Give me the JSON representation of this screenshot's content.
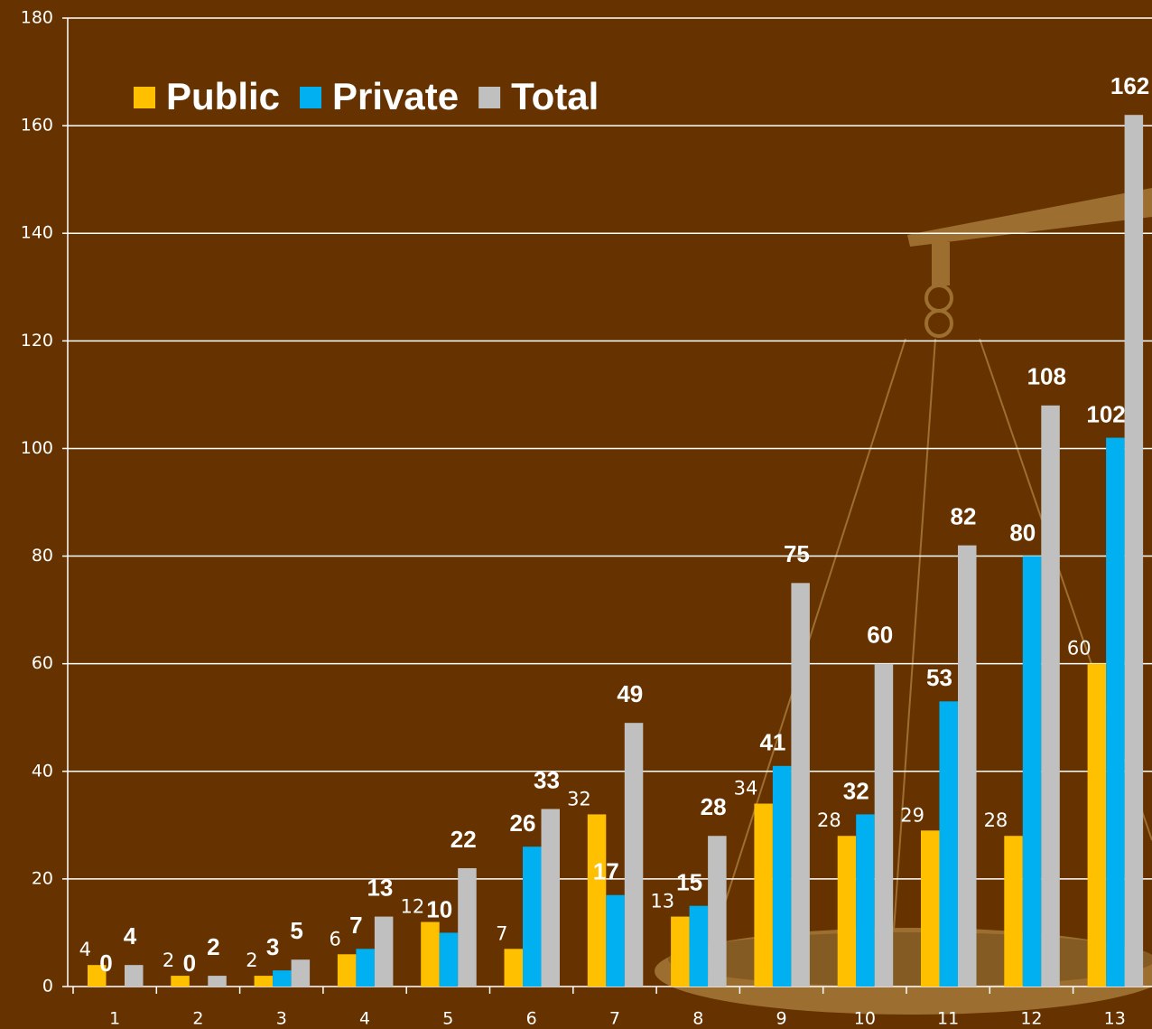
{
  "chart_data": {
    "type": "bar",
    "categories": [
      "1",
      "2",
      "3",
      "4",
      "5",
      "6",
      "7",
      "8",
      "9",
      "10",
      "11",
      "12",
      "13"
    ],
    "series": [
      {
        "name": "Public",
        "color": "#FFC000",
        "values": [
          4,
          2,
          2,
          6,
          12,
          7,
          32,
          13,
          34,
          28,
          29,
          28,
          60
        ]
      },
      {
        "name": "Private",
        "color": "#00B0F0",
        "values": [
          0,
          0,
          3,
          7,
          10,
          26,
          17,
          15,
          41,
          32,
          53,
          80,
          102
        ]
      },
      {
        "name": "Total",
        "color": "#C0C0C0",
        "values": [
          4,
          2,
          5,
          13,
          22,
          33,
          49,
          28,
          75,
          60,
          82,
          108,
          162
        ]
      }
    ],
    "ylim": [
      0,
      180
    ],
    "yticks": [
      0,
      20,
      40,
      60,
      80,
      100,
      120,
      140,
      160,
      180
    ],
    "grid": true,
    "legend": "top-left"
  }
}
